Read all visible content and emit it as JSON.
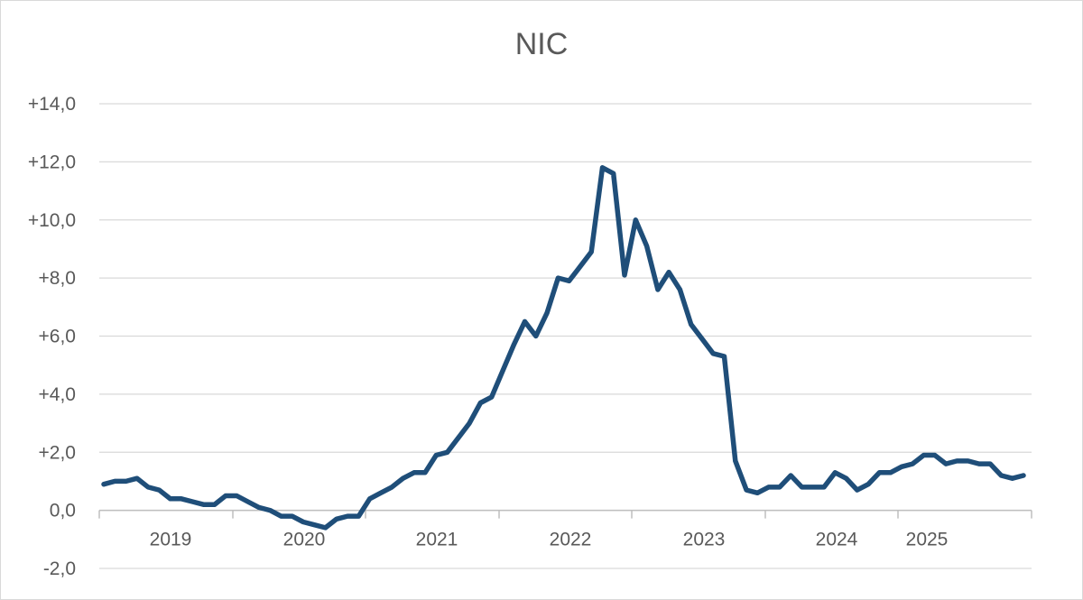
{
  "chart_data": {
    "type": "line",
    "title": "NIC",
    "xlabel": "",
    "ylabel": "",
    "ylim": [
      -2,
      14
    ],
    "y_ticks": [
      -2,
      0,
      2,
      4,
      6,
      8,
      10,
      12,
      14
    ],
    "y_tick_labels": [
      "-2,0",
      "0,0",
      "+2,0",
      "+4,0",
      "+6,0",
      "+8,0",
      "+10,0",
      "+12,0",
      "+14,0"
    ],
    "x_tick_labels": [
      "2019",
      "2020",
      "2021",
      "2022",
      "2023",
      "2024",
      "2025"
    ],
    "grid": true,
    "legend": "none",
    "line_color": "#1f4e79",
    "series": [
      {
        "values": [
          0.9,
          1.0,
          1.0,
          1.1,
          0.8,
          0.7,
          0.4,
          0.4,
          0.3,
          0.2,
          0.2,
          0.5,
          0.5,
          0.3,
          0.1,
          0.0,
          -0.2,
          -0.2,
          -0.4,
          -0.5,
          -0.6,
          -0.3,
          -0.2,
          -0.2,
          0.4,
          0.6,
          0.8,
          1.1,
          1.3,
          1.3,
          1.9,
          2.0,
          2.5,
          3.0,
          3.7,
          3.9,
          4.8,
          5.7,
          6.5,
          6.0,
          6.8,
          8.0,
          7.9,
          8.4,
          8.9,
          11.8,
          11.6,
          8.1,
          10.0,
          9.1,
          7.6,
          8.2,
          7.6,
          6.4,
          5.9,
          5.4,
          5.3,
          1.7,
          0.7,
          0.6,
          0.8,
          0.8,
          1.2,
          0.8,
          0.8,
          0.8,
          1.3,
          1.1,
          0.7,
          0.9,
          1.3,
          1.3,
          1.5,
          1.6,
          1.9,
          1.9,
          1.6,
          1.7,
          1.7,
          1.6,
          1.6,
          1.2,
          1.1,
          1.2
        ]
      }
    ]
  }
}
